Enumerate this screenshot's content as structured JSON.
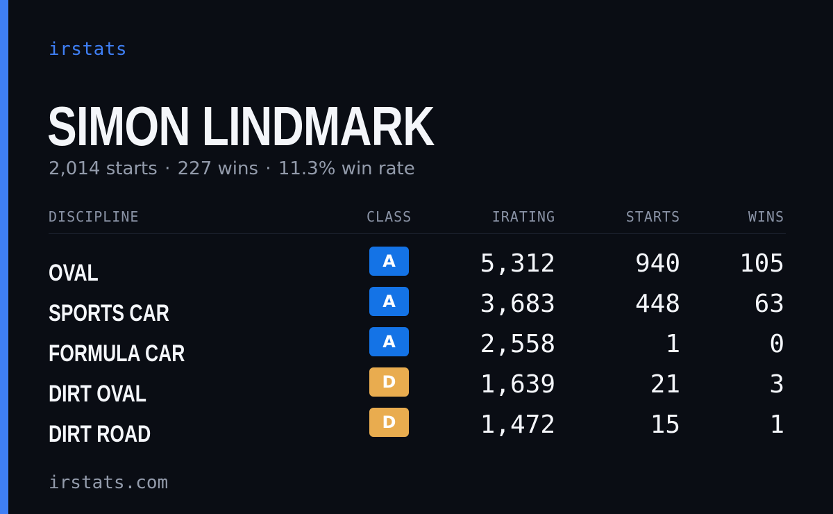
{
  "brand": "irstats",
  "driver_name": "SIMON LINDMARK",
  "summary": {
    "starts": "2,014 starts",
    "wins": "227 wins",
    "win_rate": "11.3% win rate",
    "separator": "·"
  },
  "table": {
    "headers": {
      "discipline": "DISCIPLINE",
      "class": "CLASS",
      "irating": "IRATING",
      "starts": "STARTS",
      "wins": "WINS"
    },
    "rows": [
      {
        "discipline": "OVAL",
        "class": "A",
        "irating": "5,312",
        "starts": "940",
        "wins": "105"
      },
      {
        "discipline": "SPORTS CAR",
        "class": "A",
        "irating": "3,683",
        "starts": "448",
        "wins": "63"
      },
      {
        "discipline": "FORMULA CAR",
        "class": "A",
        "irating": "2,558",
        "starts": "1",
        "wins": "0"
      },
      {
        "discipline": "DIRT OVAL",
        "class": "D",
        "irating": "1,639",
        "starts": "21",
        "wins": "3"
      },
      {
        "discipline": "DIRT ROAD",
        "class": "D",
        "irating": "1,472",
        "starts": "15",
        "wins": "1"
      }
    ]
  },
  "footer": "irstats.com",
  "colors": {
    "background": "#0a0d14",
    "accent": "#3f7ff5",
    "class_a": "#1473e6",
    "class_d": "#e9ac4f"
  }
}
